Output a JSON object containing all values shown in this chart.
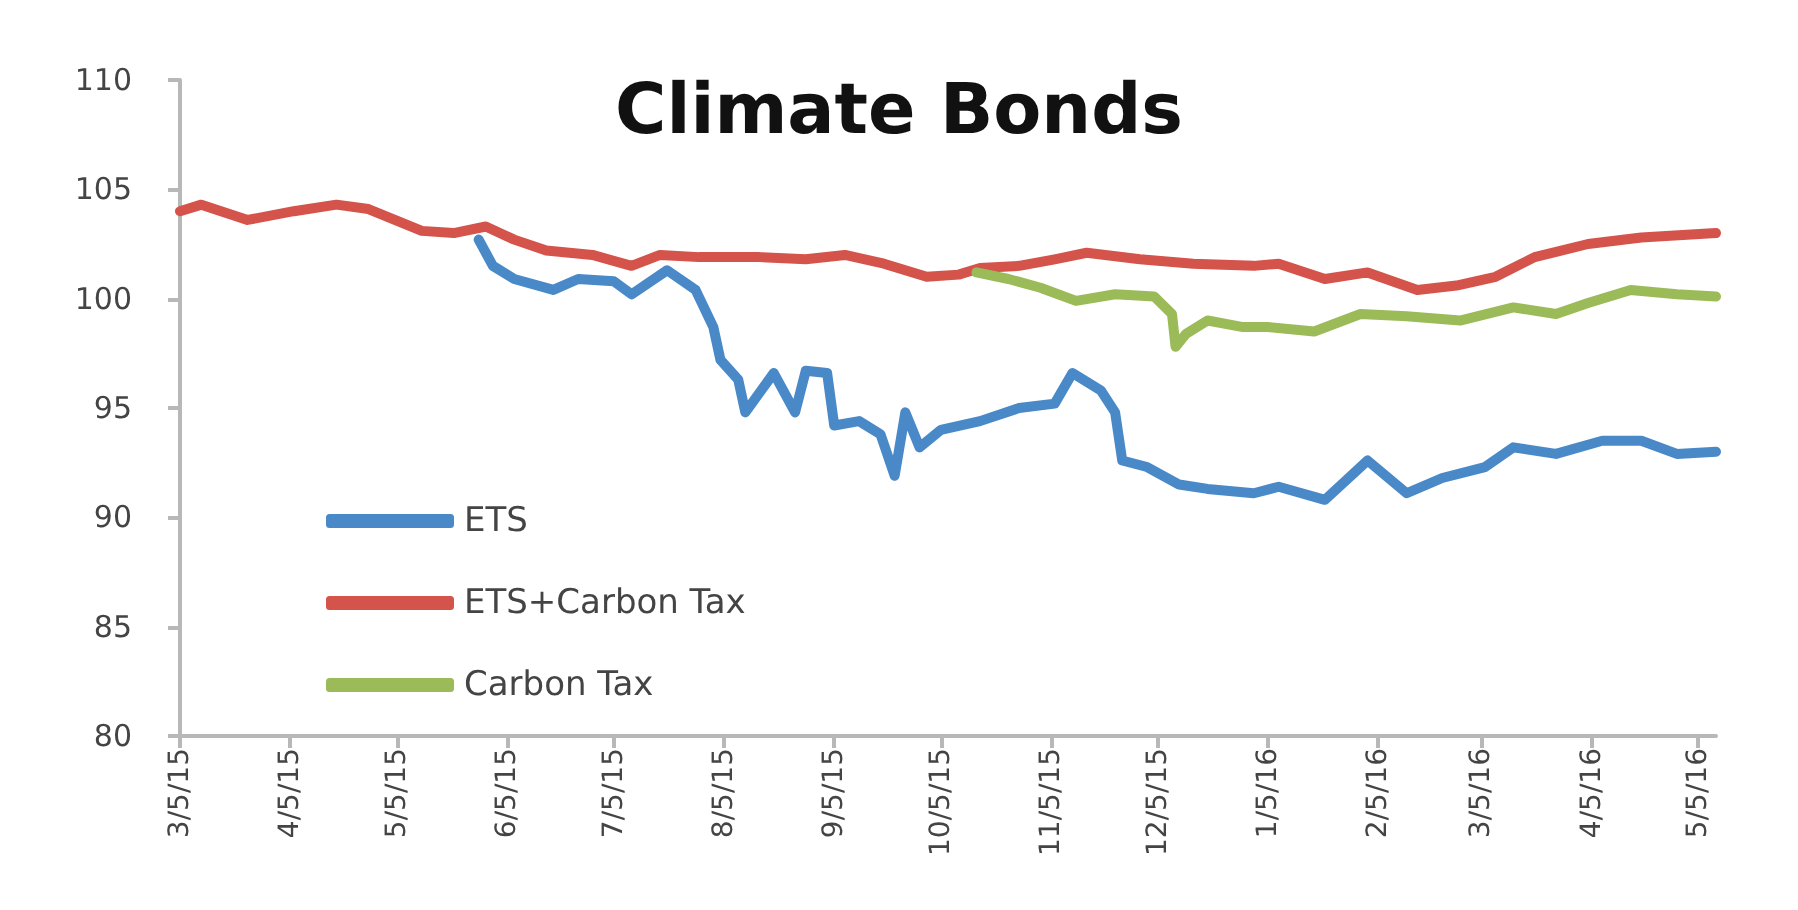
{
  "chart_data": {
    "type": "line",
    "title": "Climate Bonds",
    "series": [
      {
        "name": "ETS",
        "color": "#4a89c8",
        "x": [
          "2015-05-28",
          "2015-06-01",
          "2015-06-07",
          "2015-06-18",
          "2015-06-25",
          "2015-07-05",
          "2015-07-10",
          "2015-07-20",
          "2015-07-28",
          "2015-08-02",
          "2015-08-04",
          "2015-08-09",
          "2015-08-11",
          "2015-08-19",
          "2015-08-25",
          "2015-08-28",
          "2015-09-03",
          "2015-09-05",
          "2015-09-12",
          "2015-09-18",
          "2015-09-22",
          "2015-09-25",
          "2015-09-29",
          "2015-10-05",
          "2015-10-16",
          "2015-10-27",
          "2015-11-06",
          "2015-11-11",
          "2015-11-19",
          "2015-11-23",
          "2015-11-25",
          "2015-12-02",
          "2015-12-11",
          "2015-12-19",
          "2016-01-01",
          "2016-01-08",
          "2016-01-21",
          "2016-02-02",
          "2016-02-13",
          "2016-02-23",
          "2016-03-06",
          "2016-03-14",
          "2016-03-26",
          "2016-04-08",
          "2016-04-19",
          "2016-04-29",
          "2016-05-10"
        ],
        "values": [
          102.7,
          101.5,
          100.9,
          100.4,
          100.9,
          100.8,
          100.2,
          101.3,
          100.4,
          98.7,
          97.2,
          96.3,
          94.8,
          96.6,
          94.8,
          96.7,
          96.6,
          94.2,
          94.4,
          93.8,
          91.9,
          94.8,
          93.2,
          94.0,
          94.4,
          95.0,
          95.2,
          96.6,
          95.8,
          94.8,
          92.6,
          92.3,
          91.5,
          91.3,
          91.1,
          91.4,
          90.8,
          92.6,
          91.1,
          91.8,
          92.3,
          93.2,
          92.9,
          93.5,
          93.5,
          92.9,
          93.0
        ]
      },
      {
        "name": "ETS+Carbon Tax",
        "color": "#d4534a",
        "x": [
          "2015-03-05",
          "2015-03-11",
          "2015-03-24",
          "2015-04-06",
          "2015-04-18",
          "2015-04-27",
          "2015-05-12",
          "2015-05-21",
          "2015-05-30",
          "2015-06-07",
          "2015-06-16",
          "2015-06-29",
          "2015-07-10",
          "2015-07-18",
          "2015-07-29",
          "2015-08-15",
          "2015-08-28",
          "2015-09-08",
          "2015-09-19",
          "2015-10-01",
          "2015-10-10",
          "2015-10-16",
          "2015-10-27",
          "2015-11-06",
          "2015-11-15",
          "2015-11-30",
          "2015-12-15",
          "2016-01-01",
          "2016-01-08",
          "2016-01-21",
          "2016-02-02",
          "2016-02-16",
          "2016-02-27",
          "2016-03-09",
          "2016-03-20",
          "2016-04-04",
          "2016-04-19",
          "2016-05-10"
        ],
        "values": [
          104.0,
          104.3,
          103.6,
          104.0,
          104.3,
          104.1,
          103.1,
          103.0,
          103.3,
          102.7,
          102.2,
          102.0,
          101.5,
          102.0,
          101.9,
          101.9,
          101.8,
          102.0,
          101.6,
          101.0,
          101.1,
          101.4,
          101.5,
          101.8,
          102.1,
          101.8,
          101.6,
          101.5,
          101.6,
          100.9,
          101.2,
          100.4,
          100.6,
          101.0,
          101.9,
          102.5,
          102.8,
          103.0
        ]
      },
      {
        "name": "Carbon Tax",
        "color": "#9bbb59",
        "x": [
          "2015-10-15",
          "2015-10-24",
          "2015-11-02",
          "2015-11-12",
          "2015-11-23",
          "2015-12-04",
          "2015-12-09",
          "2015-12-10",
          "2015-12-13",
          "2015-12-19",
          "2015-12-29",
          "2016-01-05",
          "2016-01-18",
          "2016-01-31",
          "2016-02-13",
          "2016-02-28",
          "2016-03-14",
          "2016-03-26",
          "2016-04-04",
          "2016-04-16",
          "2016-04-29",
          "2016-05-10"
        ],
        "values": [
          101.2,
          100.9,
          100.5,
          99.9,
          100.2,
          100.1,
          99.3,
          97.8,
          98.4,
          99.0,
          98.7,
          98.7,
          98.5,
          99.3,
          99.2,
          99.0,
          99.6,
          99.3,
          99.8,
          100.4,
          100.2,
          100.1
        ]
      }
    ],
    "xlim": [
      "2015-03-05",
      "2016-05-10"
    ],
    "xticks": [
      {
        "value": "2015-03-05",
        "label": "3/5/15"
      },
      {
        "value": "2015-04-05",
        "label": "4/5/15"
      },
      {
        "value": "2015-05-05",
        "label": "5/5/15"
      },
      {
        "value": "2015-06-05",
        "label": "6/5/15"
      },
      {
        "value": "2015-07-05",
        "label": "7/5/15"
      },
      {
        "value": "2015-08-05",
        "label": "8/5/15"
      },
      {
        "value": "2015-09-05",
        "label": "9/5/15"
      },
      {
        "value": "2015-10-05",
        "label": "10/5/15"
      },
      {
        "value": "2015-11-05",
        "label": "11/5/15"
      },
      {
        "value": "2015-12-05",
        "label": "12/5/15"
      },
      {
        "value": "2016-01-05",
        "label": "1/5/16"
      },
      {
        "value": "2016-02-05",
        "label": "2/5/16"
      },
      {
        "value": "2016-03-05",
        "label": "3/5/16"
      },
      {
        "value": "2016-04-05",
        "label": "4/5/16"
      },
      {
        "value": "2016-05-05",
        "label": "5/5/16"
      }
    ],
    "ylim": [
      80,
      110
    ],
    "yticks": [
      80,
      85,
      90,
      95,
      100,
      105,
      110
    ],
    "grid": false,
    "legend": "bottom left",
    "marker": "none",
    "line_style": "solid"
  }
}
